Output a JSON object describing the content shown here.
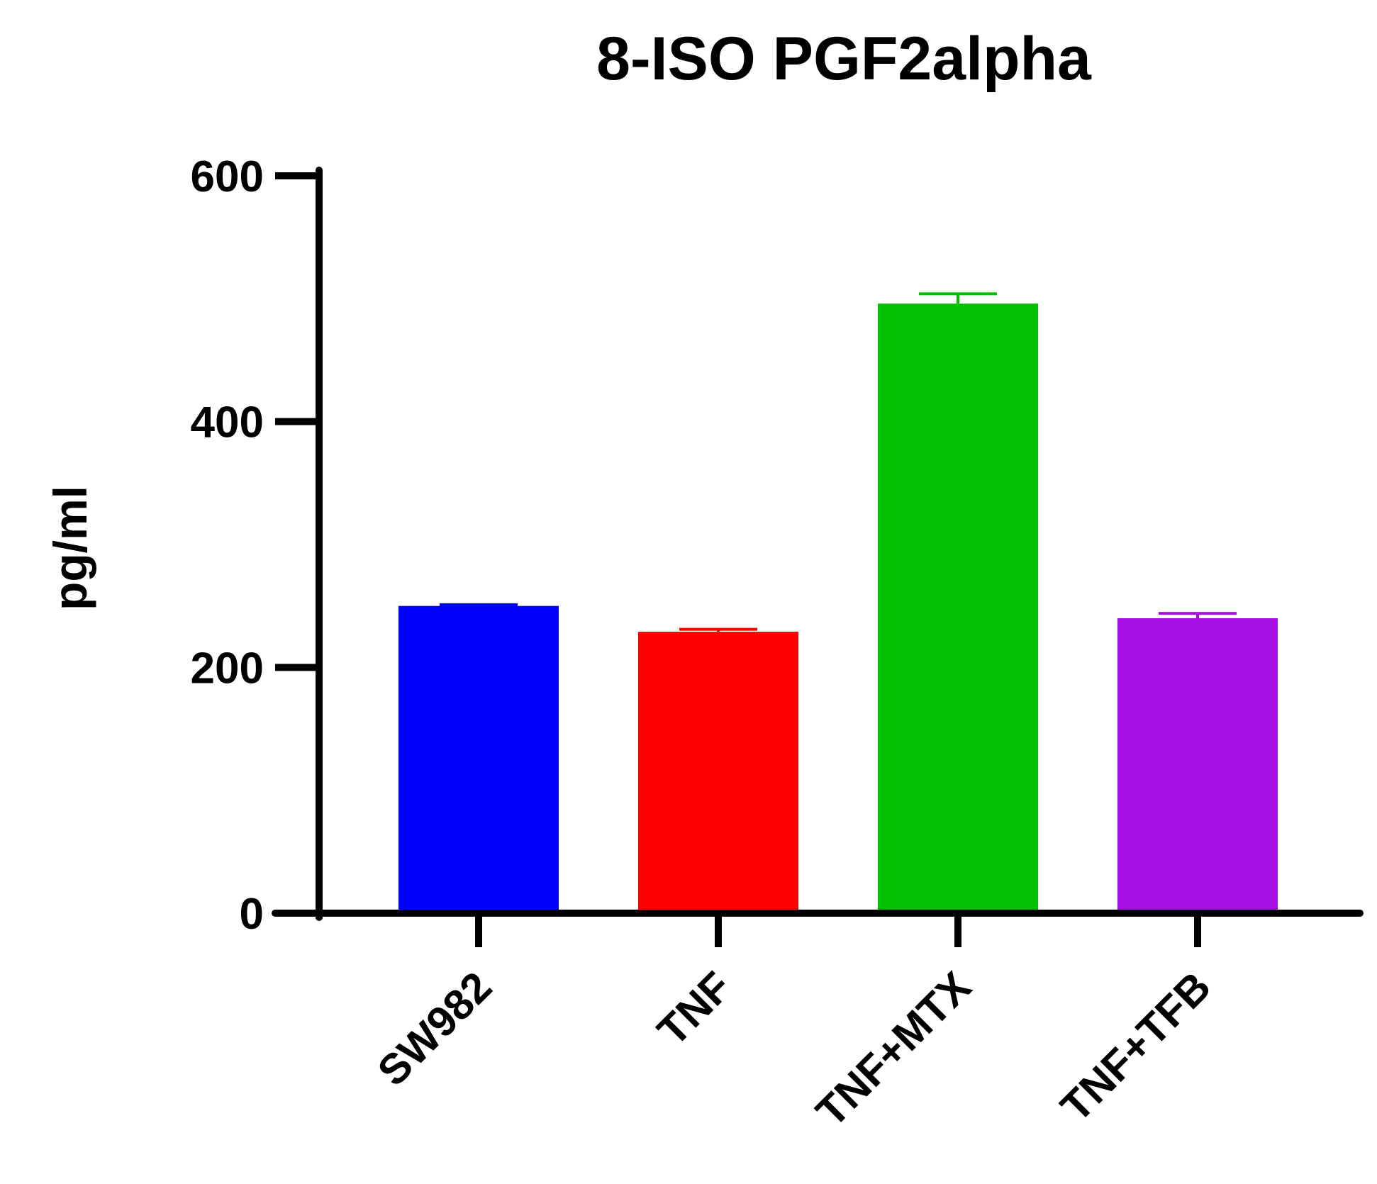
{
  "chart_data": {
    "type": "bar",
    "title": "8-ISO PGF2alpha",
    "xlabel": "",
    "ylabel": "pg/ml",
    "ylim": [
      0,
      600
    ],
    "yticks": [
      0,
      200,
      400,
      600
    ],
    "ytick_labels": [
      "0",
      "200",
      "400",
      "600"
    ],
    "categories": [
      "SW982",
      "TNF",
      "TNF+MTX",
      "TNF+TFB"
    ],
    "values": [
      250,
      229,
      496,
      240
    ],
    "errors": [
      1,
      2,
      8,
      4
    ],
    "colors": [
      "#0000ff",
      "#ff0000",
      "#00c000",
      "#a80ee6"
    ],
    "grid": false,
    "legend": "none"
  }
}
